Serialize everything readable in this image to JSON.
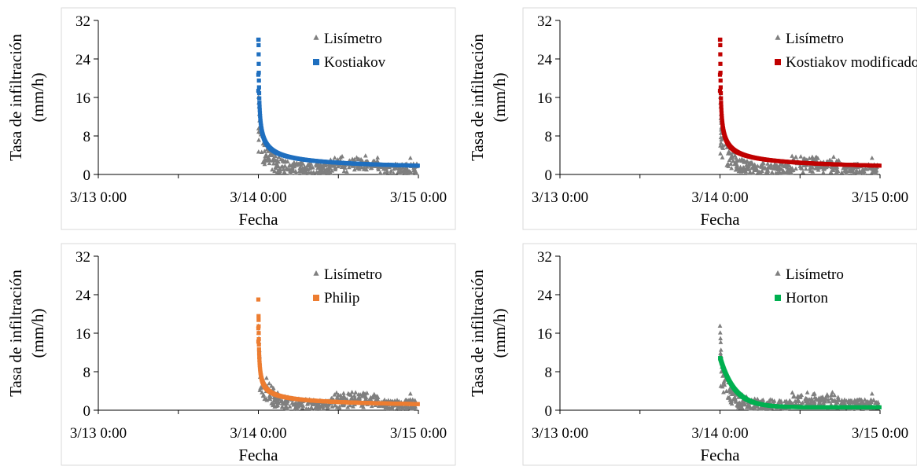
{
  "chart_data": [
    {
      "type": "scatter",
      "xlabel": "Fecha",
      "ylabel": "Tasa de infiltración (mm/h)",
      "ylabel_lines": [
        "Tasa de infiltración",
        "(mm/h)"
      ],
      "x_ticks": [
        "3/13 0:00",
        "3/14 0:00",
        "3/15 0:00"
      ],
      "xlim": [
        "3/13 0:00",
        "3/15 0:00"
      ],
      "ylim": [
        0,
        32
      ],
      "y_ticks": [
        "0",
        "8",
        "16",
        "24",
        "32"
      ],
      "grid": false,
      "legend_position": "top-right",
      "series": [
        {
          "name": "Lisímetro",
          "marker": "triangle",
          "color": "#7f7f7f",
          "peak_value": 17.5,
          "noise_max_late": 4
        },
        {
          "name": "Kostiakov",
          "marker": "square",
          "color": "#1f6fbf",
          "start_value": 28,
          "end_value": 1.3
        }
      ]
    },
    {
      "type": "scatter",
      "xlabel": "Fecha",
      "ylabel": "Tasa de infiltración (mm/h)",
      "ylabel_lines": [
        "Tasa de infiltración",
        "(mm/h)"
      ],
      "x_ticks": [
        "3/13 0:00",
        "3/14 0:00",
        "3/15 0:00"
      ],
      "xlim": [
        "3/13 0:00",
        "3/15 0:00"
      ],
      "ylim": [
        0,
        32
      ],
      "y_ticks": [
        "0",
        "8",
        "16",
        "24",
        "32"
      ],
      "grid": false,
      "legend_position": "top-right",
      "series": [
        {
          "name": "Lisímetro",
          "marker": "triangle",
          "color": "#7f7f7f",
          "peak_value": 17.5,
          "noise_max_late": 4
        },
        {
          "name": "Kostiakov modificado",
          "marker": "square",
          "color": "#c00000",
          "start_value": 28,
          "end_value": 1.3
        }
      ]
    },
    {
      "type": "scatter",
      "xlabel": "Fecha",
      "ylabel": "Tasa de infiltración (mm/h)",
      "ylabel_lines": [
        "Tasa de infiltración",
        "(mm/h)"
      ],
      "x_ticks": [
        "3/13 0:00",
        "3/14 0:00",
        "3/15 0:00"
      ],
      "xlim": [
        "3/13 0:00",
        "3/15 0:00"
      ],
      "ylim": [
        0,
        32
      ],
      "y_ticks": [
        "0",
        "8",
        "16",
        "24",
        "32"
      ],
      "grid": false,
      "legend_position": "top-right",
      "series": [
        {
          "name": "Lisímetro",
          "marker": "triangle",
          "color": "#7f7f7f",
          "peak_value": 17.5,
          "noise_max_late": 4
        },
        {
          "name": "Philip",
          "marker": "square",
          "color": "#ed7d31",
          "start_value": 23,
          "end_value": 1.1
        }
      ]
    },
    {
      "type": "scatter",
      "xlabel": "Fecha",
      "ylabel": "Tasa de infiltración (mm/h)",
      "ylabel_lines": [
        "Tasa de infiltración",
        "(mm/h)"
      ],
      "x_ticks": [
        "3/13 0:00",
        "3/14 0:00",
        "3/15 0:00"
      ],
      "xlim": [
        "3/13 0:00",
        "3/15 0:00"
      ],
      "ylim": [
        0,
        32
      ],
      "y_ticks": [
        "0",
        "8",
        "16",
        "24",
        "32"
      ],
      "grid": false,
      "legend_position": "top-right",
      "series": [
        {
          "name": "Lisímetro",
          "marker": "triangle",
          "color": "#7f7f7f",
          "peak_value": 17.5,
          "noise_max_late": 4
        },
        {
          "name": "Horton",
          "marker": "square",
          "color": "#00b050",
          "start_value": 11,
          "end_value": 0.6
        }
      ]
    }
  ]
}
